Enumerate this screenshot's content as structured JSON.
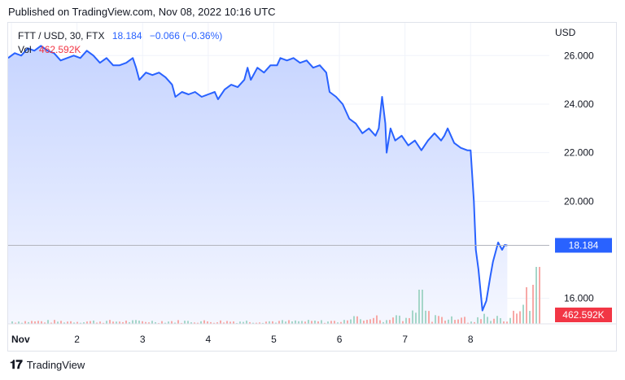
{
  "header": {
    "published": "Published on TradingView.com, Nov 08, 2022 10:16 UTC"
  },
  "legend": {
    "symbol": "FTT / USD, 30, FTX",
    "last": "18.184",
    "change": "−0.066 (−0.36%)",
    "vol_label": "Vol",
    "vol_value": "462.592K"
  },
  "footer": {
    "brand": "TradingView"
  },
  "colors": {
    "line": "#2962ff",
    "area_top": "#c6d4ff",
    "area_bottom": "#f5f7ff",
    "vol_up": "#a5d6c9",
    "vol_down": "#f7a9a7",
    "price_tag": "#2962ff",
    "vol_tag": "#f23645"
  },
  "chart_data": {
    "type": "area",
    "currency_label": "USD",
    "y_ticks": [
      "26.000",
      "24.000",
      "22.000",
      "20.000",
      "16.000"
    ],
    "y_tick_values": [
      26,
      24,
      22,
      20,
      16
    ],
    "ylim": [
      14.95,
      27.35
    ],
    "x_ticks": [
      "Nov",
      "2",
      "3",
      "4",
      "5",
      "6",
      "7",
      "8"
    ],
    "x_tick_values": [
      0,
      1,
      2,
      3,
      4,
      5,
      6,
      7
    ],
    "xlim": [
      -0.05,
      8.2
    ],
    "last_price_label": "18.184",
    "last_price": 18.184,
    "volume_label": "462.592K",
    "series": [
      {
        "values": [
          [
            -0.05,
            25.9
          ],
          [
            0.05,
            26.1
          ],
          [
            0.15,
            26.0
          ],
          [
            0.25,
            26.3
          ],
          [
            0.35,
            26.2
          ],
          [
            0.45,
            26.4
          ],
          [
            0.55,
            26.2
          ],
          [
            0.65,
            26.1
          ],
          [
            0.75,
            25.8
          ],
          [
            0.85,
            25.9
          ],
          [
            0.95,
            26.0
          ],
          [
            1.05,
            25.9
          ],
          [
            1.15,
            26.2
          ],
          [
            1.25,
            26.0
          ],
          [
            1.35,
            25.7
          ],
          [
            1.45,
            25.9
          ],
          [
            1.55,
            25.6
          ],
          [
            1.65,
            25.6
          ],
          [
            1.75,
            25.7
          ],
          [
            1.85,
            25.9
          ],
          [
            1.9,
            25.5
          ],
          [
            1.95,
            25.0
          ],
          [
            2.05,
            25.3
          ],
          [
            2.15,
            25.2
          ],
          [
            2.25,
            25.3
          ],
          [
            2.35,
            25.1
          ],
          [
            2.45,
            24.8
          ],
          [
            2.5,
            24.3
          ],
          [
            2.6,
            24.5
          ],
          [
            2.7,
            24.4
          ],
          [
            2.8,
            24.5
          ],
          [
            2.9,
            24.3
          ],
          [
            3.0,
            24.4
          ],
          [
            3.1,
            24.5
          ],
          [
            3.15,
            24.2
          ],
          [
            3.25,
            24.6
          ],
          [
            3.35,
            24.8
          ],
          [
            3.45,
            24.7
          ],
          [
            3.55,
            25.0
          ],
          [
            3.6,
            25.5
          ],
          [
            3.65,
            25.0
          ],
          [
            3.75,
            25.5
          ],
          [
            3.85,
            25.3
          ],
          [
            3.95,
            25.6
          ],
          [
            4.05,
            25.6
          ],
          [
            4.1,
            25.9
          ],
          [
            4.2,
            25.8
          ],
          [
            4.3,
            25.9
          ],
          [
            4.4,
            25.7
          ],
          [
            4.5,
            25.8
          ],
          [
            4.6,
            25.5
          ],
          [
            4.7,
            25.6
          ],
          [
            4.8,
            25.3
          ],
          [
            4.85,
            24.5
          ],
          [
            4.95,
            24.3
          ],
          [
            5.05,
            24.0
          ],
          [
            5.15,
            23.4
          ],
          [
            5.25,
            23.2
          ],
          [
            5.35,
            22.8
          ],
          [
            5.45,
            23.0
          ],
          [
            5.55,
            22.7
          ],
          [
            5.6,
            23.0
          ],
          [
            5.65,
            24.3
          ],
          [
            5.7,
            23.2
          ],
          [
            5.72,
            22.0
          ],
          [
            5.78,
            23.0
          ],
          [
            5.85,
            22.5
          ],
          [
            5.95,
            22.7
          ],
          [
            6.05,
            22.3
          ],
          [
            6.15,
            22.5
          ],
          [
            6.25,
            22.1
          ],
          [
            6.35,
            22.5
          ],
          [
            6.45,
            22.8
          ],
          [
            6.55,
            22.5
          ],
          [
            6.6,
            22.7
          ],
          [
            6.65,
            23.0
          ],
          [
            6.75,
            22.4
          ],
          [
            6.85,
            22.2
          ],
          [
            6.95,
            22.1
          ],
          [
            7.0,
            22.1
          ],
          [
            7.05,
            20.0
          ],
          [
            7.08,
            18.0
          ],
          [
            7.12,
            17.2
          ],
          [
            7.18,
            15.5
          ],
          [
            7.24,
            15.9
          ],
          [
            7.3,
            16.9
          ],
          [
            7.34,
            17.5
          ],
          [
            7.38,
            17.9
          ],
          [
            7.42,
            18.3
          ],
          [
            7.48,
            18.0
          ],
          [
            7.52,
            18.2
          ],
          [
            7.56,
            18.18
          ]
        ]
      }
    ]
  }
}
